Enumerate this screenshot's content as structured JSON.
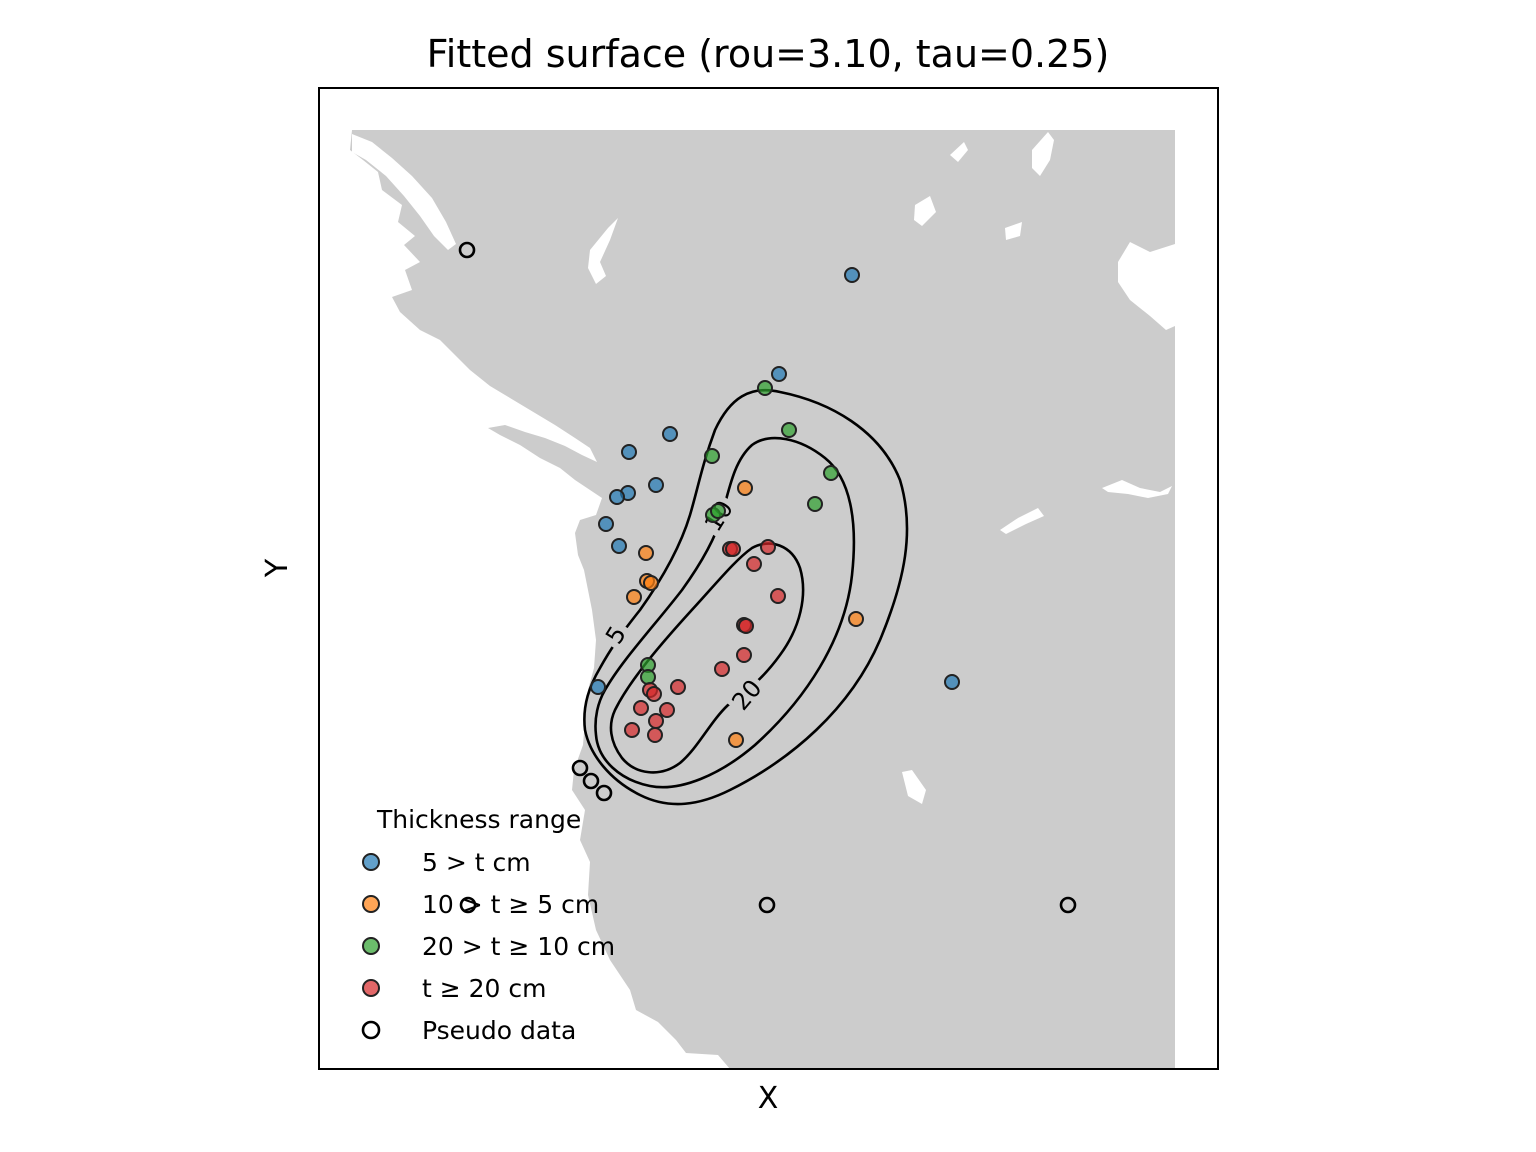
{
  "chart_data": {
    "type": "scatter",
    "title": "Fitted surface (rou=3.10, tau=0.25)",
    "xlabel": "X",
    "ylabel": "Y",
    "grid": false,
    "x_ticks": [],
    "y_ticks": [],
    "legend": {
      "title": "Thickness range",
      "position": "lower-left",
      "entries": [
        {
          "label": "5 > t cm",
          "color": "#1f77b4",
          "style": "filled"
        },
        {
          "label": "10 > t ≥ 5 cm",
          "color": "#ff7f0e",
          "style": "filled"
        },
        {
          "label": "20 > t ≥ 10 cm",
          "color": "#2ca02c",
          "style": "filled"
        },
        {
          "label": "t ≥ 20 cm",
          "color": "#d62728",
          "style": "filled"
        },
        {
          "label": "Pseudo data",
          "color": "#000000",
          "style": "hollow"
        }
      ]
    },
    "contour_levels": [
      "5",
      "10",
      "20"
    ],
    "series": [
      {
        "name": "5 > t cm",
        "color": "#1f77b4",
        "points": [
          [
            852,
            275
          ],
          [
            779,
            374
          ],
          [
            670,
            434
          ],
          [
            629,
            452
          ],
          [
            656,
            485
          ],
          [
            628,
            493
          ],
          [
            617,
            497
          ],
          [
            606,
            524
          ],
          [
            619,
            546
          ],
          [
            598,
            687
          ],
          [
            952,
            682
          ]
        ]
      },
      {
        "name": "10 > t ≥ 5 cm",
        "color": "#ff7f0e",
        "points": [
          [
            745,
            488
          ],
          [
            646,
            553
          ],
          [
            647,
            581
          ],
          [
            651,
            583
          ],
          [
            634,
            597
          ],
          [
            856,
            619
          ],
          [
            736,
            740
          ]
        ]
      },
      {
        "name": "20 > t ≥ 10 cm",
        "color": "#2ca02c",
        "points": [
          [
            765,
            388
          ],
          [
            789,
            430
          ],
          [
            712,
            456
          ],
          [
            831,
            473
          ],
          [
            815,
            504
          ],
          [
            713,
            515
          ],
          [
            718,
            511
          ],
          [
            648,
            665
          ],
          [
            648,
            677
          ]
        ]
      },
      {
        "name": "t ≥ 20 cm",
        "color": "#d62728",
        "points": [
          [
            730,
            549
          ],
          [
            733,
            549
          ],
          [
            768,
            547
          ],
          [
            754,
            564
          ],
          [
            778,
            596
          ],
          [
            744,
            625
          ],
          [
            746,
            626
          ],
          [
            722,
            669
          ],
          [
            744,
            655
          ],
          [
            650,
            690
          ],
          [
            654,
            694
          ],
          [
            678,
            687
          ],
          [
            641,
            708
          ],
          [
            667,
            710
          ],
          [
            656,
            721
          ],
          [
            632,
            730
          ],
          [
            655,
            735
          ]
        ]
      },
      {
        "name": "Pseudo data",
        "color": "#000000",
        "hollow": true,
        "points": [
          [
            467,
            250
          ],
          [
            580,
            768
          ],
          [
            591,
            781
          ],
          [
            604,
            793
          ],
          [
            468,
            905
          ],
          [
            767,
            905
          ],
          [
            1068,
            905
          ]
        ]
      }
    ]
  }
}
